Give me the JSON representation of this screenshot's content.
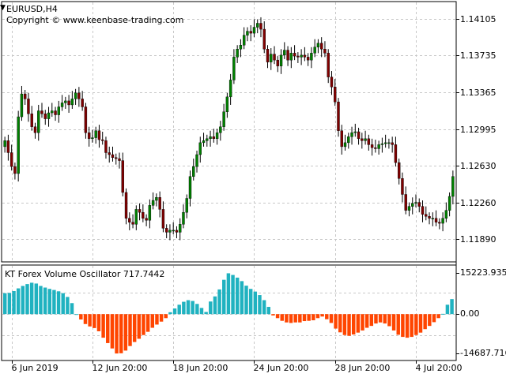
{
  "chart_data": [
    {
      "type": "candlestick",
      "title": "EURUSD,H4",
      "subtitle": "Copyright © www.keenbase-trading.com",
      "y_ticks": [
        "1.14105",
        "1.13735",
        "1.13365",
        "1.12995",
        "1.12630",
        "1.12260",
        "1.11890"
      ],
      "ylim": [
        1.1167,
        1.1427
      ],
      "grid": true,
      "colors": {
        "bull": "#008000",
        "bear": "#800000",
        "wick": "#000000"
      },
      "closes": [
        1.1288,
        1.1276,
        1.1262,
        1.1255,
        1.1312,
        1.1335,
        1.133,
        1.1315,
        1.1302,
        1.1296,
        1.1318,
        1.1315,
        1.131,
        1.1316,
        1.1318,
        1.1314,
        1.1322,
        1.1326,
        1.1328,
        1.1324,
        1.133,
        1.1336,
        1.133,
        1.1322,
        1.1296,
        1.129,
        1.1291,
        1.1298,
        1.1289,
        1.1288,
        1.1276,
        1.1274,
        1.1271,
        1.127,
        1.1268,
        1.1236,
        1.121,
        1.1206,
        1.1204,
        1.1219,
        1.1216,
        1.121,
        1.1208,
        1.1223,
        1.1228,
        1.1231,
        1.1219,
        1.12,
        1.1196,
        1.1198,
        1.1198,
        1.1196,
        1.1204,
        1.1216,
        1.123,
        1.1252,
        1.1262,
        1.1274,
        1.1286,
        1.1288,
        1.129,
        1.1292,
        1.129,
        1.1296,
        1.1302,
        1.1317,
        1.1332,
        1.1349,
        1.1372,
        1.138,
        1.1384,
        1.1394,
        1.1398,
        1.1396,
        1.1402,
        1.1406,
        1.14,
        1.138,
        1.1367,
        1.1375,
        1.1369,
        1.1363,
        1.1374,
        1.1379,
        1.1369,
        1.1376,
        1.1373,
        1.1372,
        1.1374,
        1.1372,
        1.1369,
        1.1376,
        1.1382,
        1.1386,
        1.138,
        1.1376,
        1.1352,
        1.1342,
        1.1327,
        1.1298,
        1.1282,
        1.1286,
        1.1292,
        1.1296,
        1.1297,
        1.129,
        1.1288,
        1.129,
        1.1284,
        1.1281,
        1.128,
        1.1284,
        1.1285,
        1.1286,
        1.1286,
        1.1284,
        1.1266,
        1.125,
        1.1234,
        1.1218,
        1.1222,
        1.1225,
        1.1226,
        1.1222,
        1.1214,
        1.1212,
        1.121,
        1.121,
        1.1206,
        1.1205,
        1.121,
        1.1218,
        1.1232,
        1.1252
      ]
    },
    {
      "type": "histogram",
      "title": "KT Forex Volume Oscillator 717.7442",
      "y_ticks": [
        "15223.935",
        "0.00",
        "-14687.716"
      ],
      "ylim": [
        -17000,
        18000
      ],
      "colors": {
        "positive": "#20B2C0",
        "negative": "#FF4500"
      },
      "values": [
        7800,
        7900,
        8600,
        9600,
        10500,
        11200,
        11700,
        11400,
        10500,
        9900,
        9400,
        9000,
        8500,
        7800,
        6400,
        4100,
        0,
        -2000,
        -3700,
        -4600,
        -5200,
        -6400,
        -8800,
        -10800,
        -12800,
        -14687,
        -14600,
        -13600,
        -11900,
        -10400,
        -9200,
        -7800,
        -6600,
        -5100,
        -3900,
        -2800,
        -1500,
        700,
        2100,
        3500,
        4600,
        5200,
        4900,
        3800,
        2300,
        800,
        4700,
        6600,
        9200,
        12800,
        15223,
        14600,
        13600,
        12300,
        10600,
        9400,
        8400,
        7100,
        5200,
        2700,
        -500,
        -1500,
        -2500,
        -3100,
        -3300,
        -3100,
        -3100,
        -2600,
        -2500,
        -2300,
        -1500,
        -900,
        -1900,
        -3300,
        -5400,
        -6800,
        -7800,
        -8100,
        -7600,
        -6900,
        -6100,
        -5100,
        -4400,
        -3500,
        -3100,
        -3500,
        -4500,
        -6100,
        -7700,
        -8500,
        -8800,
        -8500,
        -7800,
        -6900,
        -5600,
        -4400,
        -3000,
        -1500,
        100,
        3500,
        5600
      ]
    }
  ],
  "x_ticks": [
    "6 Jun 2019",
    "12 Jun 20:00",
    "18 Jun 20:00",
    "24 Jun 20:00",
    "28 Jun 20:00",
    "4 Jul 20:00"
  ]
}
